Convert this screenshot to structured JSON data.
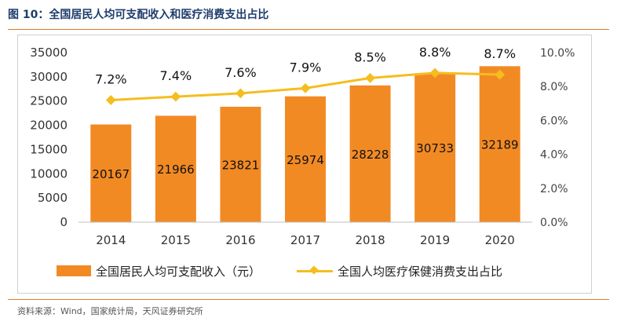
{
  "figure": {
    "title": "图 10：全国居民人均可支配收入和医疗消费支出占比",
    "source": "资料来源：Wind，国家统计局，天风证券研究所"
  },
  "colors": {
    "bar": "#f28a24",
    "line": "#f5bd1f",
    "accent": "#e07a2e",
    "title": "#1f3d6b"
  },
  "chart_data": {
    "type": "bar",
    "title": "",
    "categories": [
      "2014",
      "2015",
      "2016",
      "2017",
      "2018",
      "2019",
      "2020"
    ],
    "series": [
      {
        "name": "全国居民人均可支配收入（元）",
        "type": "bar",
        "axis": "left",
        "values": [
          20167,
          21966,
          23821,
          25974,
          28228,
          30733,
          32189
        ],
        "value_labels": [
          "20167",
          "21966",
          "23821",
          "25974",
          "28228",
          "30733",
          "32189"
        ]
      },
      {
        "name": "全国人均医疗保健消费支出占比",
        "type": "line",
        "axis": "right",
        "values": [
          7.2,
          7.4,
          7.6,
          7.9,
          8.5,
          8.8,
          8.7
        ],
        "value_labels": [
          "7.2%",
          "7.4%",
          "7.6%",
          "7.9%",
          "8.5%",
          "8.8%",
          "8.7%"
        ]
      }
    ],
    "y_left": {
      "min": 0,
      "max": 35000,
      "ticks": [
        "0",
        "5000",
        "10000",
        "15000",
        "20000",
        "25000",
        "30000",
        "35000"
      ]
    },
    "y_right": {
      "min": 0,
      "max": 10,
      "ticks": [
        "0.0%",
        "2.0%",
        "4.0%",
        "6.0%",
        "8.0%",
        "10.0%"
      ]
    },
    "grid": false,
    "legend_position": "bottom"
  }
}
